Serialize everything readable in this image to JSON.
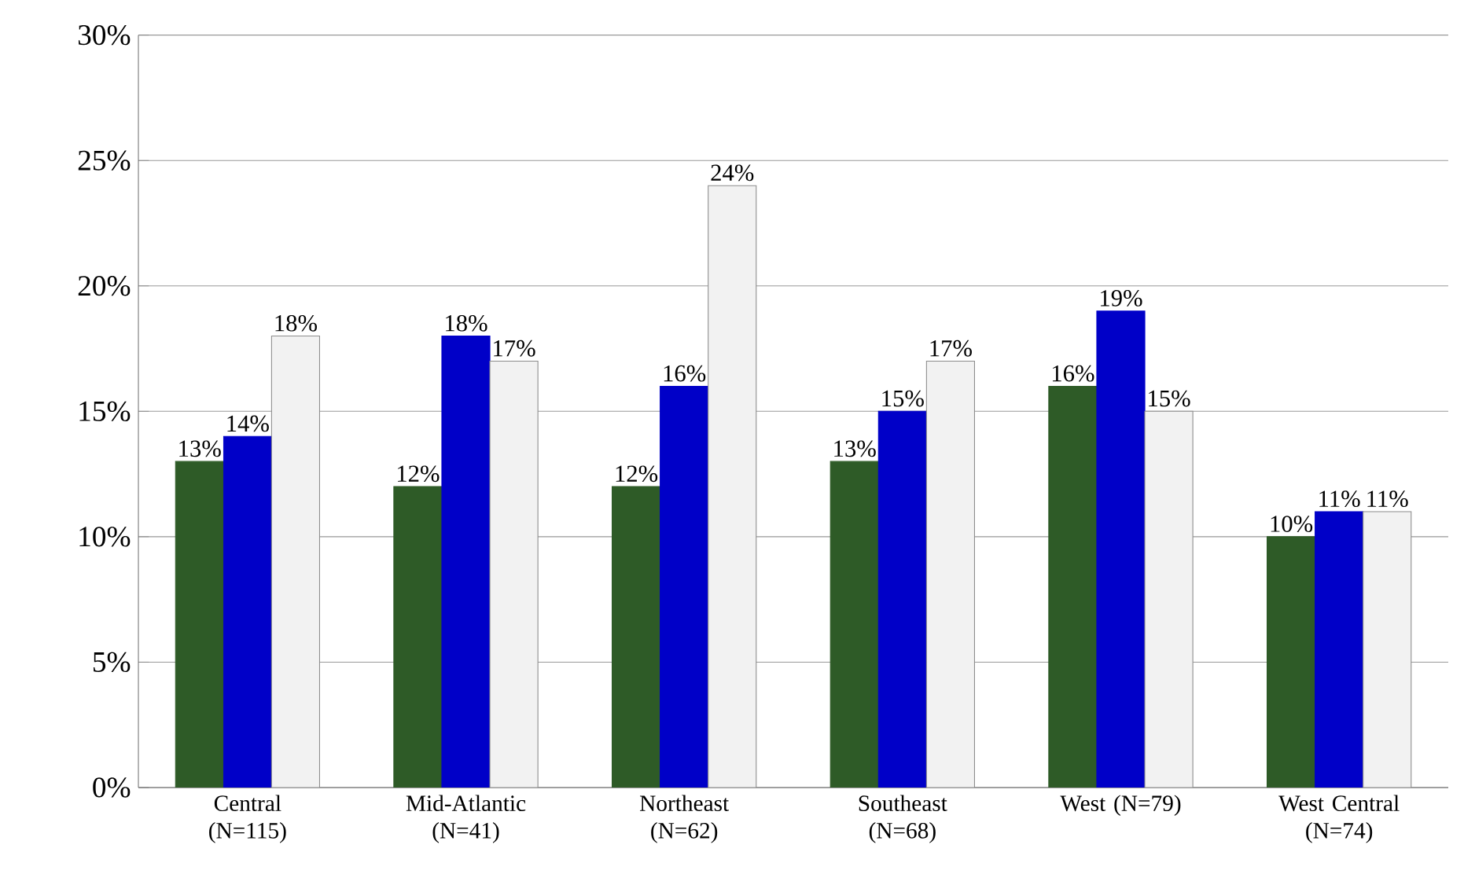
{
  "chart_data": {
    "type": "bar",
    "categories": [
      "Central (N=115)",
      "Mid-Atlantic (N=41)",
      "Northeast (N=62)",
      "Southeast (N=68)",
      "West (N=79)",
      "West Central (N=74)"
    ],
    "series": [
      {
        "color": "#2e5b27",
        "values": [
          13,
          12,
          12,
          13,
          16,
          10
        ],
        "value_labels": [
          "13%",
          "12%",
          "12%",
          "13%",
          "16%",
          "10%"
        ]
      },
      {
        "color": "#0000c8",
        "values": [
          14,
          18,
          16,
          15,
          19,
          11
        ],
        "value_labels": [
          "14%",
          "18%",
          "16%",
          "15%",
          "19%",
          "11%"
        ]
      },
      {
        "color": "#f2f2f2",
        "values": [
          18,
          17,
          24,
          17,
          15,
          11
        ],
        "value_labels": [
          "18%",
          "17%",
          "24%",
          "17%",
          "15%",
          "11%"
        ]
      }
    ],
    "ylim": [
      0,
      30
    ],
    "yticks": [
      {
        "value": 0,
        "label": "0%"
      },
      {
        "value": 5,
        "label": "5%"
      },
      {
        "value": 10,
        "label": "10%"
      },
      {
        "value": 15,
        "label": "15%"
      },
      {
        "value": 20,
        "label": "20%"
      },
      {
        "value": 25,
        "label": "25%"
      },
      {
        "value": 30,
        "label": "30%"
      }
    ],
    "grid": "y"
  }
}
